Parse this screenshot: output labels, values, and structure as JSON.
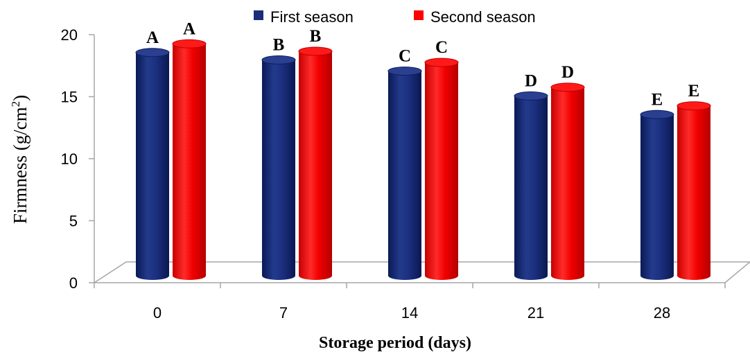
{
  "chart_data": {
    "type": "bar",
    "categories": [
      "0",
      "7",
      "14",
      "21",
      "28"
    ],
    "series": [
      {
        "name": "First season",
        "color": "#1a2e78",
        "values": [
          18.0,
          17.4,
          16.5,
          14.5,
          13.0
        ],
        "labels": [
          "A",
          "B",
          "C",
          "D",
          "E"
        ]
      },
      {
        "name": "Second season",
        "color": "#ff0000",
        "values": [
          18.7,
          18.1,
          17.2,
          15.2,
          13.7
        ],
        "labels": [
          "A",
          "B",
          "C",
          "D",
          "E"
        ]
      }
    ],
    "xlabel": "Storage period (days)",
    "ylabel_main": "Firmness (g/cm",
    "ylabel_sup": "2",
    "ylabel_end": ")",
    "yticks": [
      "0",
      "5",
      "10",
      "15",
      "20"
    ],
    "ylim": [
      0,
      20
    ],
    "legend_position": "top",
    "grid": false,
    "style": "3d-cylinder"
  }
}
